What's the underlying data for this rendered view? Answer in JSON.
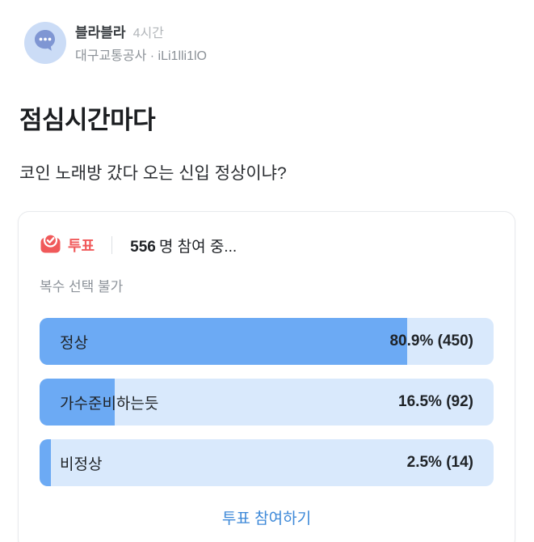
{
  "post": {
    "board_name": "블라블라",
    "time": "4시간",
    "subtitle": "대구교통공사 · iLi1lli1lO",
    "title": "점심시간마다",
    "body": "코인 노래방 갔다 오는 신입 정상이냐?"
  },
  "poll": {
    "badge_label": "투표",
    "participants_count": "556",
    "participants_suffix": "명 참여 중...",
    "note": "복수 선택 불가",
    "options": [
      {
        "label": "정상",
        "value_text": "80.9% (450)",
        "percent": 80.9,
        "count": 450
      },
      {
        "label": "가수준비하는듯",
        "value_text": "16.5% (92)",
        "percent": 16.5,
        "count": 92
      },
      {
        "label": "비정상",
        "value_text": "2.5% (14)",
        "percent": 2.5,
        "count": 14
      }
    ],
    "cta_label": "투표 참여하기"
  },
  "icons": {
    "avatar": "chat-bubble-icon",
    "poll": "ballot-box-icon"
  },
  "colors": {
    "poll_accent_red": "#f0595a",
    "bar_fill_blue": "#6caaf4",
    "bar_track_blue": "#d9e9fc",
    "link_blue": "#3c88d8",
    "avatar_bg": "#cbdcf6",
    "avatar_bubble": "#7f96d3",
    "muted_text": "#8d939a",
    "card_border": "#e8eaed"
  }
}
